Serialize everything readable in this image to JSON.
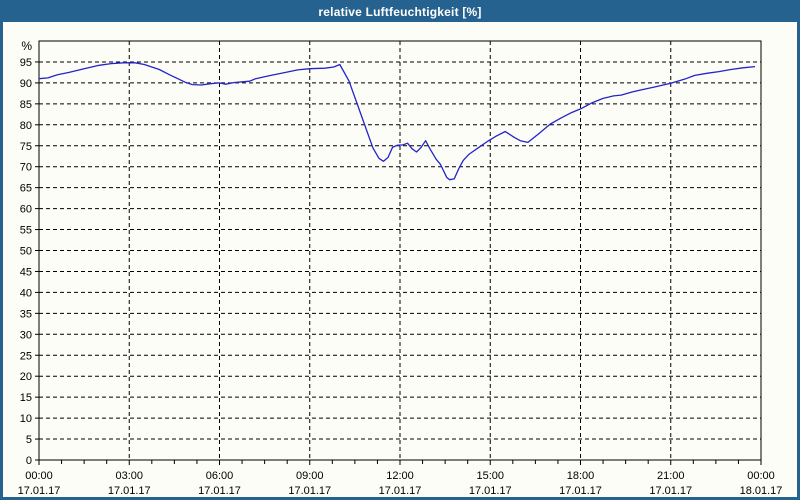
{
  "window": {
    "title": "relative Luftfeuchtigkeit [%]"
  },
  "colors": {
    "titlebar_bg": "#26628f",
    "window_border": "#26628f",
    "chart_bg": "#fcfdf6",
    "line": "#2424c8",
    "grid": "#000000",
    "axis": "#000000",
    "tick_text": "#000000",
    "title_text": "#ffffff"
  },
  "chart_data": {
    "type": "line",
    "title": "relative Luftfeuchtigkeit [%]",
    "xlabel": "",
    "ylabel": "%",
    "x_unit": "hours since 17.01.17 00:00",
    "xlim": [
      0,
      24
    ],
    "ylim": [
      0,
      100
    ],
    "grid": true,
    "grid_style": "dashed",
    "legend": false,
    "y_ticks": [
      0,
      5,
      10,
      15,
      20,
      25,
      30,
      35,
      40,
      45,
      50,
      55,
      60,
      65,
      70,
      75,
      80,
      85,
      90,
      95
    ],
    "x_major_ticks": [
      {
        "t": 0,
        "time": "00:00",
        "date": "17.01.17"
      },
      {
        "t": 3,
        "time": "03:00",
        "date": "17.01.17"
      },
      {
        "t": 6,
        "time": "06:00",
        "date": "17.01.17"
      },
      {
        "t": 9,
        "time": "09:00",
        "date": "17.01.17"
      },
      {
        "t": 12,
        "time": "12:00",
        "date": "17.01.17"
      },
      {
        "t": 15,
        "time": "15:00",
        "date": "17.01.17"
      },
      {
        "t": 18,
        "time": "18:00",
        "date": "17.01.17"
      },
      {
        "t": 21,
        "time": "21:00",
        "date": "17.01.17"
      },
      {
        "t": 24,
        "time": "00:00",
        "date": "18.01.17"
      }
    ],
    "x_minor_step_h": 0.75,
    "x_gridline_step_h": 3,
    "series": [
      {
        "name": "relative Luftfeuchtigkeit",
        "color": "#2424c8",
        "points": [
          [
            0.0,
            91.0
          ],
          [
            0.3,
            91.2
          ],
          [
            0.6,
            91.9
          ],
          [
            1.0,
            92.5
          ],
          [
            1.5,
            93.4
          ],
          [
            2.0,
            94.2
          ],
          [
            2.4,
            94.6
          ],
          [
            2.8,
            94.8
          ],
          [
            3.2,
            94.8
          ],
          [
            3.5,
            94.4
          ],
          [
            4.0,
            93.2
          ],
          [
            4.35,
            91.9
          ],
          [
            4.85,
            90.2
          ],
          [
            5.1,
            89.6
          ],
          [
            5.4,
            89.5
          ],
          [
            5.7,
            89.8
          ],
          [
            6.0,
            90.0
          ],
          [
            6.2,
            89.7
          ],
          [
            6.5,
            90.1
          ],
          [
            7.0,
            90.4
          ],
          [
            7.2,
            91.0
          ],
          [
            7.65,
            91.7
          ],
          [
            8.2,
            92.5
          ],
          [
            8.6,
            93.1
          ],
          [
            9.0,
            93.4
          ],
          [
            9.5,
            93.5
          ],
          [
            9.8,
            93.8
          ],
          [
            10.0,
            94.4
          ],
          [
            10.3,
            90.5
          ],
          [
            10.6,
            84.5
          ],
          [
            10.9,
            78.5
          ],
          [
            11.1,
            74.5
          ],
          [
            11.3,
            72.0
          ],
          [
            11.45,
            71.3
          ],
          [
            11.6,
            72.2
          ],
          [
            11.75,
            74.6
          ],
          [
            11.9,
            75.1
          ],
          [
            12.1,
            75.2
          ],
          [
            12.25,
            75.6
          ],
          [
            12.4,
            74.3
          ],
          [
            12.55,
            73.5
          ],
          [
            12.7,
            74.6
          ],
          [
            12.85,
            76.2
          ],
          [
            13.0,
            74.2
          ],
          [
            13.2,
            71.8
          ],
          [
            13.35,
            70.5
          ],
          [
            13.55,
            67.5
          ],
          [
            13.65,
            66.9
          ],
          [
            13.8,
            67.1
          ],
          [
            13.95,
            69.5
          ],
          [
            14.1,
            71.5
          ],
          [
            14.3,
            73.0
          ],
          [
            14.6,
            74.5
          ],
          [
            14.9,
            76.0
          ],
          [
            15.2,
            77.3
          ],
          [
            15.5,
            78.4
          ],
          [
            15.8,
            77.0
          ],
          [
            16.0,
            76.2
          ],
          [
            16.25,
            75.8
          ],
          [
            16.6,
            77.8
          ],
          [
            17.0,
            80.2
          ],
          [
            17.35,
            81.6
          ],
          [
            17.7,
            82.9
          ],
          [
            18.0,
            83.8
          ],
          [
            18.4,
            85.3
          ],
          [
            18.75,
            86.3
          ],
          [
            19.1,
            86.9
          ],
          [
            19.35,
            87.1
          ],
          [
            19.7,
            87.8
          ],
          [
            20.0,
            88.3
          ],
          [
            20.5,
            89.1
          ],
          [
            21.0,
            89.9
          ],
          [
            21.5,
            91.0
          ],
          [
            21.8,
            91.8
          ],
          [
            22.2,
            92.3
          ],
          [
            22.6,
            92.7
          ],
          [
            23.0,
            93.2
          ],
          [
            23.4,
            93.6
          ],
          [
            23.8,
            93.9
          ]
        ]
      }
    ]
  }
}
